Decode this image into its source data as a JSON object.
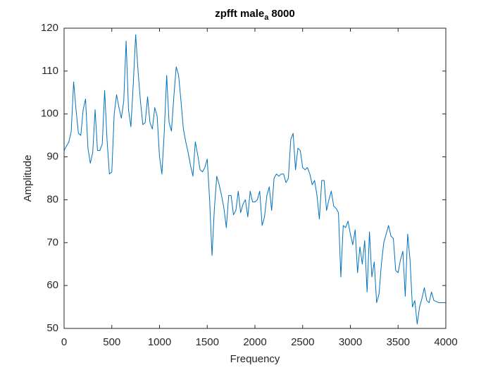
{
  "chart_data": {
    "type": "line",
    "title": "zpfft male",
    "title_subscript": "a",
    "title_suffix": "8000",
    "xlabel": "Frequency",
    "ylabel": "Amplitude",
    "x": [
      0,
      25,
      50,
      75,
      100,
      125,
      150,
      175,
      200,
      225,
      250,
      275,
      300,
      325,
      350,
      375,
      400,
      425,
      450,
      475,
      500,
      525,
      550,
      575,
      600,
      625,
      650,
      675,
      700,
      725,
      750,
      775,
      800,
      825,
      850,
      875,
      900,
      925,
      950,
      975,
      1000,
      1025,
      1050,
      1075,
      1100,
      1125,
      1150,
      1175,
      1200,
      1225,
      1250,
      1275,
      1300,
      1325,
      1350,
      1375,
      1400,
      1425,
      1450,
      1475,
      1500,
      1525,
      1550,
      1575,
      1600,
      1625,
      1650,
      1675,
      1700,
      1725,
      1750,
      1775,
      1800,
      1825,
      1850,
      1875,
      1900,
      1925,
      1950,
      1975,
      2000,
      2025,
      2050,
      2075,
      2100,
      2125,
      2150,
      2175,
      2200,
      2225,
      2250,
      2275,
      2300,
      2325,
      2350,
      2375,
      2400,
      2425,
      2450,
      2475,
      2500,
      2525,
      2550,
      2575,
      2600,
      2625,
      2650,
      2675,
      2700,
      2725,
      2750,
      2775,
      2800,
      2825,
      2850,
      2875,
      2900,
      2925,
      2950,
      2975,
      3000,
      3025,
      3050,
      3075,
      3100,
      3125,
      3150,
      3175,
      3200,
      3225,
      3250,
      3275,
      3300,
      3325,
      3350,
      3375,
      3400,
      3425,
      3450,
      3475,
      3500,
      3525,
      3550,
      3575,
      3600,
      3625,
      3650,
      3675,
      3700,
      3725,
      3750,
      3775,
      3800,
      3825,
      3850,
      3875,
      3900,
      3925,
      3950,
      3975,
      4000
    ],
    "series": [
      {
        "name": "zpfft",
        "color": "#0072bd",
        "values": [
          91.5,
          92.5,
          93.5,
          96,
          107.5,
          101,
          95.5,
          95,
          101,
          103.5,
          92,
          88.5,
          91,
          101,
          91.5,
          91.5,
          93,
          105.5,
          94,
          86,
          86.5,
          100,
          104.5,
          101.5,
          99,
          103,
          117,
          101,
          97,
          107,
          118.5,
          110,
          103,
          97.5,
          98,
          104,
          98,
          96.5,
          101.5,
          99.5,
          90,
          86,
          96,
          109,
          98,
          96,
          104,
          111,
          109,
          103,
          96.5,
          93.5,
          91,
          88,
          85.5,
          93.5,
          90.5,
          87,
          86.5,
          87.5,
          89.5,
          80,
          67,
          78,
          85.5,
          83.5,
          81,
          78,
          73.5,
          81,
          81,
          76.5,
          77.5,
          82,
          77,
          79,
          80,
          76,
          82,
          79.5,
          79.5,
          80,
          82,
          74,
          76,
          81,
          83,
          77.5,
          85,
          86,
          85.5,
          86,
          86,
          84,
          85,
          94,
          95.5,
          87,
          92,
          91.5,
          87.5,
          87,
          87.5,
          86,
          83.5,
          84.5,
          81,
          75.5,
          84.5,
          84.5,
          77.5,
          80,
          82,
          78.5,
          78,
          77,
          62,
          74,
          73.5,
          75,
          72,
          69.5,
          73,
          63,
          69,
          65,
          70.5,
          58.5,
          72.5,
          62,
          65.5,
          56,
          58,
          65,
          70,
          72,
          74,
          71.5,
          71,
          63.5,
          63,
          66,
          68,
          57.5,
          72,
          66,
          55,
          56.5,
          51,
          55,
          57,
          59.5,
          56.5,
          56,
          58.5,
          56.5,
          56.3,
          56,
          56,
          56,
          56
        ]
      }
    ],
    "xlim": [
      0,
      4000
    ],
    "xticks": [
      0,
      500,
      1000,
      1500,
      2000,
      2500,
      3000,
      3500,
      4000
    ],
    "ylim": [
      50,
      120
    ],
    "yticks": [
      50,
      60,
      70,
      80,
      90,
      100,
      110,
      120
    ],
    "grid": false
  }
}
